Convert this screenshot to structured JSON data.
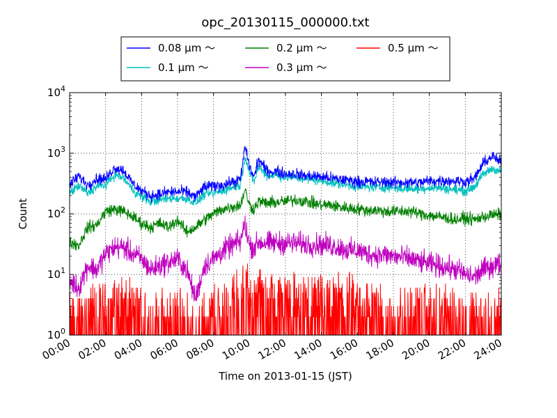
{
  "chart_data": {
    "type": "line",
    "title": "opc_20130115_000000.txt",
    "xlabel": "Time on 2013-01-15 (JST)",
    "ylabel": "Count",
    "y_scale": "log",
    "ylim": [
      1,
      10000
    ],
    "xlim": [
      "00:00",
      "24:00"
    ],
    "grid": true,
    "legend_position": "top-center",
    "x_ticks": [
      "00:00",
      "02:00",
      "04:00",
      "06:00",
      "08:00",
      "10:00",
      "12:00",
      "14:00",
      "16:00",
      "18:00",
      "20:00",
      "22:00",
      "24:00"
    ],
    "y_ticks": [
      {
        "value": 1,
        "base": "10",
        "exp": "0"
      },
      {
        "value": 10,
        "base": "10",
        "exp": "1"
      },
      {
        "value": 100,
        "base": "10",
        "exp": "2"
      },
      {
        "value": 1000,
        "base": "10",
        "exp": "3"
      },
      {
        "value": 10000,
        "base": "10",
        "exp": "4"
      }
    ],
    "x_hours": [
      0,
      0.5,
      1,
      1.5,
      2,
      2.5,
      3,
      3.5,
      4,
      4.5,
      5,
      5.5,
      6,
      6.5,
      7,
      7.5,
      8,
      8.5,
      9,
      9.5,
      9.75,
      10,
      10.25,
      10.5,
      11,
      11.5,
      12,
      12.5,
      13,
      13.5,
      14,
      14.5,
      15,
      15.5,
      16,
      16.5,
      17,
      17.5,
      18,
      18.5,
      19,
      19.5,
      20,
      20.5,
      21,
      21.5,
      22,
      22.5,
      23,
      23.5,
      24
    ],
    "series": [
      {
        "name": "0.08 μm ～",
        "color": "#0000ff",
        "noise": 0.13,
        "values": [
          300,
          420,
          300,
          380,
          380,
          580,
          520,
          320,
          240,
          200,
          210,
          230,
          230,
          230,
          190,
          280,
          290,
          300,
          330,
          370,
          1300,
          600,
          400,
          800,
          500,
          500,
          460,
          460,
          430,
          420,
          410,
          390,
          370,
          360,
          340,
          340,
          330,
          340,
          330,
          330,
          330,
          330,
          350,
          350,
          350,
          350,
          340,
          380,
          680,
          900,
          700
        ]
      },
      {
        "name": "0.1 μm ～",
        "color": "#00bfbf",
        "noise": 0.11,
        "values": [
          220,
          290,
          220,
          280,
          300,
          440,
          390,
          250,
          190,
          160,
          170,
          180,
          180,
          180,
          150,
          210,
          220,
          240,
          270,
          300,
          900,
          480,
          340,
          600,
          430,
          440,
          400,
          400,
          380,
          370,
          350,
          330,
          310,
          300,
          280,
          280,
          270,
          280,
          270,
          260,
          260,
          260,
          270,
          270,
          260,
          250,
          240,
          280,
          450,
          560,
          500
        ]
      },
      {
        "name": "0.2 μm ～",
        "color": "#008000",
        "noise": 0.14,
        "values": [
          35,
          30,
          60,
          65,
          110,
          120,
          110,
          90,
          70,
          60,
          70,
          60,
          80,
          50,
          60,
          80,
          100,
          120,
          130,
          140,
          250,
          140,
          120,
          160,
          150,
          155,
          160,
          170,
          165,
          150,
          140,
          140,
          130,
          125,
          120,
          115,
          115,
          110,
          110,
          110,
          110,
          100,
          95,
          90,
          85,
          80,
          85,
          80,
          90,
          95,
          100
        ]
      },
      {
        "name": "0.3 μm ～",
        "color": "#bf00bf",
        "noise": 0.26,
        "values": [
          8,
          6,
          14,
          12,
          22,
          28,
          28,
          22,
          18,
          12,
          14,
          16,
          18,
          12,
          4,
          14,
          18,
          24,
          30,
          35,
          70,
          30,
          28,
          34,
          33,
          33,
          33,
          33,
          32,
          31,
          31,
          30,
          28,
          25,
          25,
          22,
          21,
          21,
          20,
          19,
          18,
          16,
          15,
          14,
          13,
          12,
          10,
          9,
          12,
          14,
          15
        ]
      },
      {
        "name": "0.5 μm ～",
        "color": "#ff0000",
        "noise": 0,
        "values": [
          1.5,
          1.5,
          2,
          2,
          2,
          2.5,
          3,
          2,
          2,
          1.5,
          1.5,
          1.5,
          2,
          1.5,
          1,
          1.5,
          2,
          2.5,
          3,
          3.5,
          7,
          4,
          3.5,
          4,
          3.5,
          3.5,
          3.5,
          3,
          3,
          3,
          3,
          3,
          3,
          3,
          2.5,
          2.5,
          2.5,
          2,
          2,
          2,
          2,
          2,
          2,
          2,
          2,
          2,
          1.5,
          1.5,
          1.5,
          1.5,
          1.5
        ]
      }
    ]
  }
}
